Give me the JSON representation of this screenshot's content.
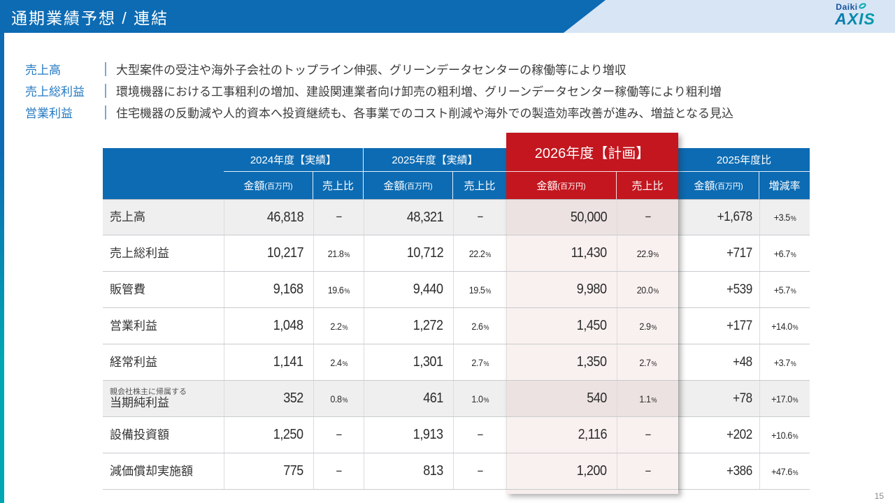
{
  "slide": {
    "title": "通期業績予想 / 連結",
    "page_number": "15",
    "logo": {
      "top": "Daiki",
      "main": "AXIS"
    }
  },
  "colors": {
    "header_blue": "#0c6bb3",
    "header_band_light_blue": "#d7e5f4",
    "accent_teal": "#00a7b3",
    "plan_red": "#c3161f",
    "plan_cell_pink": "#f9f1f0",
    "shaded_row_gray": "#efefef",
    "summary_label_blue": "#2379c2"
  },
  "summary": [
    {
      "label": "売上高",
      "text": "大型案件の受注や海外子会社のトップライン伸張、グリーンデータセンターの稼働等により増収"
    },
    {
      "label": "売上総利益",
      "text": "環境機器における工事粗利の増加、建設関連業者向け卸売の粗利増、グリーンデータセンター稼働等により粗利増"
    },
    {
      "label": "営業利益",
      "text": "住宅機器の反動減や人的資本へ投資継続も、各事業でのコスト削減や海外での製造効率改善が進み、増益となる見込"
    }
  ],
  "table": {
    "col_groups": [
      {
        "label": "2024年度【実績】",
        "sub": [
          {
            "main": "金額",
            "unit": "(百万円)"
          },
          {
            "main": "売上比"
          }
        ]
      },
      {
        "label": "2025年度【実績】",
        "sub": [
          {
            "main": "金額",
            "unit": "(百万円)"
          },
          {
            "main": "売上比"
          }
        ]
      },
      {
        "label": "2026年度【計画】",
        "highlight": true,
        "sub": [
          {
            "main": "金額",
            "unit": "(百万円)"
          },
          {
            "main": "売上比"
          }
        ]
      },
      {
        "label": "2025年度比",
        "sub": [
          {
            "main": "金額",
            "unit": "(百万円)"
          },
          {
            "main": "増減率"
          }
        ]
      }
    ],
    "rows": [
      {
        "label": "売上高",
        "shaded": true,
        "cells": [
          "46,818",
          "−",
          "48,321",
          "−",
          "50,000",
          "−",
          "+1,678",
          "+3.5%"
        ]
      },
      {
        "label": "売上総利益",
        "cells": [
          "10,217",
          "21.8%",
          "10,712",
          "22.2%",
          "11,430",
          "22.9%",
          "+717",
          "+6.7%"
        ]
      },
      {
        "label": "販管費",
        "cells": [
          "9,168",
          "19.6%",
          "9,440",
          "19.5%",
          "9,980",
          "20.0%",
          "+539",
          "+5.7%"
        ]
      },
      {
        "label": "営業利益",
        "cells": [
          "1,048",
          "2.2%",
          "1,272",
          "2.6%",
          "1,450",
          "2.9%",
          "+177",
          "+14.0%"
        ]
      },
      {
        "label": "経常利益",
        "cells": [
          "1,141",
          "2.4%",
          "1,301",
          "2.7%",
          "1,350",
          "2.7%",
          "+48",
          "+3.7%"
        ]
      },
      {
        "label": "当期純利益",
        "sublabel": "親会社株主に帰属する",
        "shaded": true,
        "cells": [
          "352",
          "0.8%",
          "461",
          "1.0%",
          "540",
          "1.1%",
          "+78",
          "+17.0%"
        ]
      },
      {
        "label": "設備投資額",
        "cells": [
          "1,250",
          "−",
          "1,913",
          "−",
          "2,116",
          "−",
          "+202",
          "+10.6%"
        ]
      },
      {
        "label": "減価償却実施額",
        "cells": [
          "775",
          "−",
          "813",
          "−",
          "1,200",
          "−",
          "+386",
          "+47.6%"
        ]
      }
    ]
  }
}
